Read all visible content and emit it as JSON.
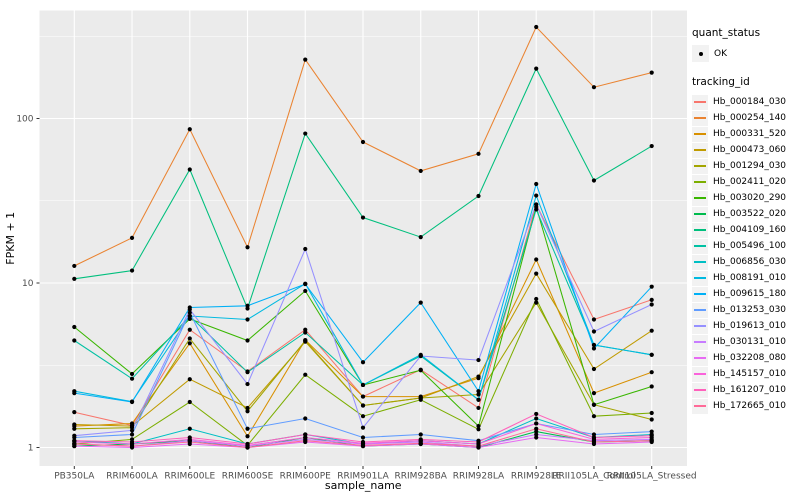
{
  "chart_data": {
    "type": "line",
    "xlabel": "sample_name",
    "ylabel": "FPKM + 1",
    "y_scale": "log10",
    "ylim": [
      0.78,
      450
    ],
    "y_major_ticks": [
      1,
      10,
      100
    ],
    "y_minor_ticks": [
      3.162,
      31.62,
      316.2
    ],
    "grid": true,
    "panel_bg": "#EBEBEB",
    "grid_color": "#FFFFFF",
    "point_color": "#000000",
    "axis_text_color": "#4D4D4D",
    "tick_mark_color": "#333333",
    "legend_position": "right",
    "categories": [
      "PB350LA",
      "RRIM600LA",
      "RRIM600LE",
      "RRIM600SE",
      "RRIM600PE",
      "RRIM901LA",
      "RRIM928BA",
      "RRIM928LA",
      "RRIM928LE",
      "RRII105LA_Control",
      "RRII105LA_Stressed"
    ],
    "series": [
      {
        "name": "Hb_000184_030",
        "color": "#F8766D",
        "values": [
          1.64,
          1.36,
          5.2,
          2.9,
          5.2,
          2.04,
          2.97,
          1.74,
          30,
          6.0,
          7.9
        ]
      },
      {
        "name": "Hb_000254_140",
        "color": "#EA8331",
        "values": [
          12.7,
          18.8,
          86,
          16.5,
          228,
          72,
          48,
          61,
          360,
          155,
          190
        ]
      },
      {
        "name": "Hb_000331_520",
        "color": "#D89000",
        "values": [
          1.35,
          1.4,
          4.3,
          1.17,
          4.5,
          2.04,
          2.04,
          2.64,
          13.9,
          2.14,
          2.87
        ]
      },
      {
        "name": "Hb_000473_060",
        "color": "#C09B00",
        "values": [
          1.38,
          1.35,
          2.6,
          1.74,
          4.4,
          1.8,
          2.0,
          2.7,
          11.4,
          3.0,
          5.13
        ]
      },
      {
        "name": "Hb_001294_030",
        "color": "#A3A500",
        "values": [
          1.3,
          1.32,
          4.6,
          1.66,
          4.46,
          1.8,
          2.0,
          2.1,
          7.6,
          1.82,
          1.48
        ]
      },
      {
        "name": "Hb_002411_020",
        "color": "#7CAE00",
        "values": [
          1.05,
          1.12,
          1.89,
          1.03,
          2.77,
          1.55,
          1.95,
          1.29,
          8.0,
          1.55,
          1.62
        ]
      },
      {
        "name": "Hb_003020_290",
        "color": "#39B600",
        "values": [
          5.4,
          2.8,
          6.05,
          4.47,
          8.95,
          2.4,
          2.95,
          1.35,
          29,
          1.82,
          2.35
        ]
      },
      {
        "name": "Hb_003522_020",
        "color": "#00BB4E",
        "values": [
          1.02,
          1.05,
          1.1,
          1.0,
          1.15,
          1.02,
          1.05,
          1.0,
          1.25,
          1.08,
          1.1
        ]
      },
      {
        "name": "Hb_004109_160",
        "color": "#00BF7D",
        "values": [
          10.6,
          11.9,
          49,
          7.0,
          81,
          25,
          19,
          33.8,
          201,
          42,
          68
        ]
      },
      {
        "name": "Hb_005496_100",
        "color": "#00C1A3",
        "values": [
          4.47,
          2.62,
          6.3,
          2.87,
          5.0,
          2.4,
          3.6,
          1.95,
          28,
          4.2,
          3.66
        ]
      },
      {
        "name": "Hb_006856_030",
        "color": "#00BFC4",
        "values": [
          1.1,
          1.05,
          1.3,
          1.05,
          1.2,
          1.05,
          1.1,
          1.05,
          1.5,
          1.15,
          1.2
        ]
      },
      {
        "name": "Hb_008191_010",
        "color": "#00BAE0",
        "values": [
          2.2,
          1.9,
          6.3,
          6.0,
          9.9,
          2.4,
          3.66,
          1.95,
          34,
          4.2,
          3.66
        ]
      },
      {
        "name": "Hb_009615_180",
        "color": "#00B0F6",
        "values": [
          2.14,
          1.89,
          7.1,
          7.27,
          9.85,
          3.3,
          7.6,
          2.2,
          40,
          4.0,
          9.5
        ]
      },
      {
        "name": "Hb_013253_030",
        "color": "#619CFF",
        "values": [
          1.15,
          1.2,
          6.6,
          1.3,
          1.5,
          1.15,
          1.2,
          1.1,
          1.4,
          1.2,
          1.25
        ]
      },
      {
        "name": "Hb_019613_010",
        "color": "#9590FF",
        "values": [
          1.18,
          1.27,
          6.9,
          2.43,
          16.1,
          1.32,
          3.6,
          3.4,
          30,
          5.07,
          7.4
        ]
      },
      {
        "name": "Hb_030131_010",
        "color": "#C77CFF",
        "values": [
          1.05,
          1.02,
          1.1,
          1.02,
          1.12,
          1.05,
          1.08,
          1.02,
          1.2,
          1.1,
          1.12
        ]
      },
      {
        "name": "Hb_032208_080",
        "color": "#E76BF3",
        "values": [
          1.02,
          1.0,
          1.05,
          1.0,
          1.08,
          1.02,
          1.05,
          1.0,
          1.15,
          1.05,
          1.08
        ]
      },
      {
        "name": "Hb_145157_010",
        "color": "#FA62DB",
        "values": [
          1.08,
          1.05,
          1.12,
          1.03,
          1.15,
          1.06,
          1.1,
          1.05,
          1.4,
          1.12,
          1.15
        ]
      },
      {
        "name": "Hb_161207_010",
        "color": "#FF62BC",
        "values": [
          1.1,
          1.08,
          1.15,
          1.05,
          1.2,
          1.08,
          1.12,
          1.08,
          1.6,
          1.15,
          1.18
        ]
      },
      {
        "name": "Hb_172665_010",
        "color": "#FF6A98",
        "values": [
          1.05,
          1.02,
          1.08,
          1.0,
          1.1,
          1.03,
          1.06,
          1.02,
          1.3,
          1.08,
          1.1
        ]
      }
    ]
  },
  "legend": {
    "quant_status_title": "quant_status",
    "quant_status_items": [
      {
        "label": "OK"
      }
    ],
    "tracking_title": "tracking_id"
  }
}
